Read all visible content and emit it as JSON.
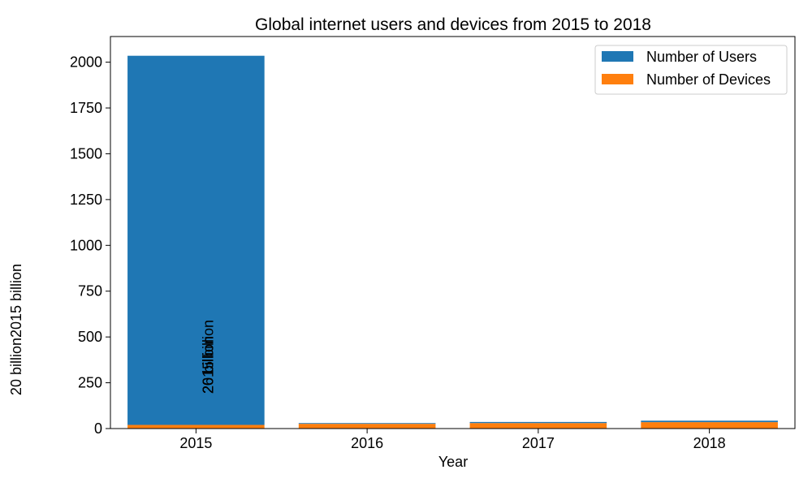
{
  "chart_data": {
    "type": "bar",
    "stacked": true,
    "title": "Global internet users and devices from 2015 to 2018",
    "xlabel": "Year",
    "ylabel": "20 billion2015 billion",
    "categories": [
      "2015",
      "2016",
      "2017",
      "2018"
    ],
    "series": [
      {
        "name": "Number of Users",
        "color": "#1f77b4",
        "values": [
          2015,
          4,
          6,
          8
        ]
      },
      {
        "name": "Number of Devices",
        "color": "#ff7f0e",
        "values": [
          20,
          26,
          30,
          35
        ]
      }
    ],
    "ylim": [
      0,
      2140
    ],
    "yticks": [
      0,
      250,
      500,
      750,
      1000,
      1250,
      1500,
      1750,
      2000
    ],
    "legend_position": "top-right",
    "grid": false,
    "annotation_lines": [
      "20 billion",
      "26 billion",
      "2015 billion"
    ]
  }
}
